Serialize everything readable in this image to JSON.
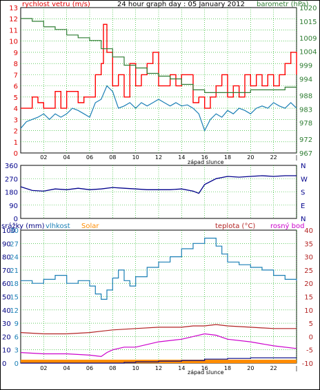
{
  "header": {
    "left_label": "rychlost vetru (m/s)",
    "title": "24 hour graph day : 05 January 2012",
    "right_label": "barometr (hPa)"
  },
  "colors": {
    "wind": "#e00000",
    "gust": "#ff0000",
    "wind_avg": "#1a7fb5",
    "barometer": "#2e7d32",
    "direction": "#00008b",
    "humidity": "#1a7fb5",
    "temperature": "#b22222",
    "dewpoint": "#cc00cc",
    "solar": "#ff8c00",
    "rain": "#000080",
    "grid": "#00aa00",
    "frame": "#000000"
  },
  "chart_data": [
    {
      "type": "line",
      "title": "24 hour graph day : 05 January 2012",
      "ylabel": "rychlost vetru (m/s)",
      "y2label": "barometr (hPa)",
      "xlabel": "západ slunce",
      "x_ticks": [
        "02",
        "04",
        "06",
        "08",
        "10",
        "12",
        "14",
        "16",
        "18",
        "20",
        "22",
        "|"
      ],
      "ylim": [
        0,
        13
      ],
      "y_ticks": [
        0,
        1,
        2,
        3,
        4,
        5,
        6,
        7,
        8,
        9,
        10,
        11,
        12,
        13
      ],
      "y2lim": [
        967,
        1020
      ],
      "y2_ticks": [
        967,
        972,
        978,
        983,
        988,
        994,
        999,
        1004,
        1009,
        1015,
        1020
      ],
      "x_range": [
        0,
        24
      ],
      "series": [
        {
          "name": "gust",
          "x": [
            0,
            0.5,
            1,
            1.5,
            2,
            2.5,
            3,
            3.5,
            4,
            4.5,
            5,
            5.5,
            6,
            6.5,
            7,
            7.2,
            7.5,
            8,
            8.5,
            9,
            9.5,
            10,
            10.5,
            11,
            11.5,
            12,
            12.5,
            13,
            13.5,
            14,
            14.5,
            15,
            15.5,
            16,
            16.5,
            17,
            17.5,
            18,
            18.5,
            19,
            19.5,
            20,
            20.5,
            21,
            21.5,
            22,
            22.5,
            23,
            23.5,
            24
          ],
          "values": [
            4,
            4,
            5,
            4.5,
            4,
            4,
            5.5,
            4,
            5.5,
            5.5,
            4.5,
            5,
            5,
            7,
            8,
            11.5,
            9,
            6,
            7,
            5,
            8,
            6,
            7,
            8,
            9,
            6,
            6,
            7,
            6,
            7,
            7,
            4.5,
            5,
            4,
            5,
            6,
            7,
            5,
            6,
            5,
            7,
            6,
            7,
            6,
            7,
            6,
            7,
            8,
            9,
            7
          ]
        },
        {
          "name": "wind",
          "x": [
            0,
            0.5,
            1,
            1.5,
            2,
            2.5,
            3,
            3.5,
            4,
            4.5,
            5,
            5.5,
            6,
            6.5,
            7,
            7.5,
            8,
            8.5,
            9,
            9.5,
            10,
            10.5,
            11,
            11.5,
            12,
            12.5,
            13,
            13.5,
            14,
            14.5,
            15,
            15.5,
            16,
            16.5,
            17,
            17.5,
            18,
            18.5,
            19,
            19.5,
            20,
            20.5,
            21,
            21.5,
            22,
            22.5,
            23,
            23.5,
            24
          ],
          "values": [
            2.2,
            2.8,
            3,
            3.2,
            3.5,
            3,
            3.5,
            3.2,
            3.5,
            4,
            3.8,
            3.5,
            3.2,
            4.5,
            4.8,
            6,
            5.5,
            4,
            4.2,
            4.5,
            4,
            4.5,
            4.2,
            4.5,
            4.8,
            4.5,
            4.2,
            4.5,
            4.2,
            4.3,
            4,
            3.5,
            2,
            3,
            3.5,
            3.2,
            3.8,
            3.5,
            4,
            3.8,
            3.5,
            4,
            4.2,
            4,
            4.5,
            4.2,
            4,
            4.5,
            4
          ]
        },
        {
          "name": "barometer",
          "axis": "y2",
          "x": [
            0,
            1,
            2,
            3,
            4,
            5,
            6,
            7,
            8,
            9,
            10,
            11,
            12,
            13,
            14,
            15,
            16,
            17,
            18,
            19,
            20,
            21,
            22,
            23,
            24
          ],
          "values": [
            1016,
            1015,
            1013,
            1012,
            1010,
            1009,
            1008,
            1005,
            1002,
            999,
            998,
            996,
            995,
            994,
            992,
            990,
            989,
            989,
            989,
            989,
            990,
            990,
            990,
            991,
            991
          ]
        }
      ]
    },
    {
      "type": "line",
      "ylabel": "",
      "ylim": [
        0,
        360
      ],
      "y_ticks": [
        0,
        90,
        180,
        270,
        360
      ],
      "right_labels": [
        "N",
        "W",
        "S",
        "E",
        "N"
      ],
      "xlabel": "",
      "x_range": [
        0,
        24
      ],
      "series": [
        {
          "name": "direction",
          "x": [
            0,
            1,
            2,
            3,
            4,
            5,
            6,
            7,
            8,
            9,
            10,
            11,
            12,
            13,
            14,
            15,
            15.5,
            16,
            17,
            18,
            19,
            20,
            21,
            22,
            23,
            24
          ],
          "values": [
            215,
            190,
            185,
            200,
            195,
            205,
            195,
            200,
            210,
            205,
            200,
            195,
            195,
            195,
            200,
            185,
            170,
            230,
            270,
            285,
            280,
            285,
            290,
            285,
            290,
            290
          ]
        }
      ]
    },
    {
      "type": "line",
      "x_ticks": [
        "02",
        "04",
        "06",
        "08",
        "10",
        "12",
        "14",
        "16",
        "18",
        "20",
        "22",
        "|"
      ],
      "xlabel": "západ slunce",
      "x_range": [
        0,
        24
      ],
      "left_outer_label": "srážky (mm)",
      "left_outer_ticks": [
        0,
        10,
        20,
        30,
        40,
        50,
        60,
        70,
        80,
        90,
        100
      ],
      "left_inner_ticks": [
        0,
        3,
        6,
        9,
        12,
        15,
        18,
        21,
        24,
        27,
        30
      ],
      "legend": [
        "vlhkost",
        "Solar",
        "teplota (°C)",
        "rosný bod"
      ],
      "right_ticks": [
        -10,
        -5,
        0,
        5,
        10,
        15,
        20,
        25,
        30,
        35,
        40
      ],
      "series": [
        {
          "name": "vlhkost",
          "axis": "humidity_0_100",
          "x": [
            0,
            1,
            2,
            3,
            4,
            5,
            6,
            6.5,
            7,
            7.5,
            8,
            8.5,
            9,
            9.5,
            10,
            11,
            12,
            13,
            14,
            15,
            16,
            16.5,
            17,
            17.5,
            18,
            19,
            20,
            21,
            22,
            23,
            24
          ],
          "values": [
            62,
            60,
            63,
            66,
            60,
            62,
            58,
            52,
            48,
            55,
            64,
            70,
            62,
            58,
            65,
            72,
            76,
            80,
            86,
            90,
            94,
            94,
            88,
            82,
            76,
            74,
            72,
            70,
            66,
            63,
            62
          ]
        },
        {
          "name": "teplota (°C)",
          "axis": "temp_-10_40",
          "x": [
            0,
            2,
            4,
            6,
            7,
            8,
            10,
            12,
            14,
            15,
            16,
            17,
            18,
            20,
            22,
            24
          ],
          "values": [
            1.5,
            1,
            1,
            1.5,
            2,
            2.5,
            3,
            3.5,
            3.5,
            4,
            4,
            4.5,
            4,
            3.5,
            3,
            3
          ]
        },
        {
          "name": "rosný bod",
          "axis": "temp_-10_40",
          "x": [
            0,
            2,
            4,
            6,
            7,
            7.5,
            8,
            9,
            10,
            12,
            14,
            15,
            16,
            17,
            18,
            20,
            22,
            24
          ],
          "values": [
            -6,
            -6.5,
            -6.5,
            -7,
            -7.5,
            -6,
            -5,
            -4,
            -4,
            -2,
            -1,
            0,
            1,
            0.5,
            -1,
            -2,
            -3.5,
            -4.5
          ]
        },
        {
          "name": "Solar",
          "axis": "rain_0_100",
          "x": [
            0,
            24
          ],
          "values": [
            1,
            1
          ]
        },
        {
          "name": "srážky (mm)",
          "axis": "rain_0_100",
          "x": [
            0,
            8,
            9,
            10,
            12,
            14,
            16,
            18,
            20,
            22,
            24
          ],
          "values": [
            0,
            0,
            0.5,
            1,
            1.5,
            2,
            3,
            3.5,
            4,
            4,
            4
          ]
        }
      ]
    }
  ]
}
